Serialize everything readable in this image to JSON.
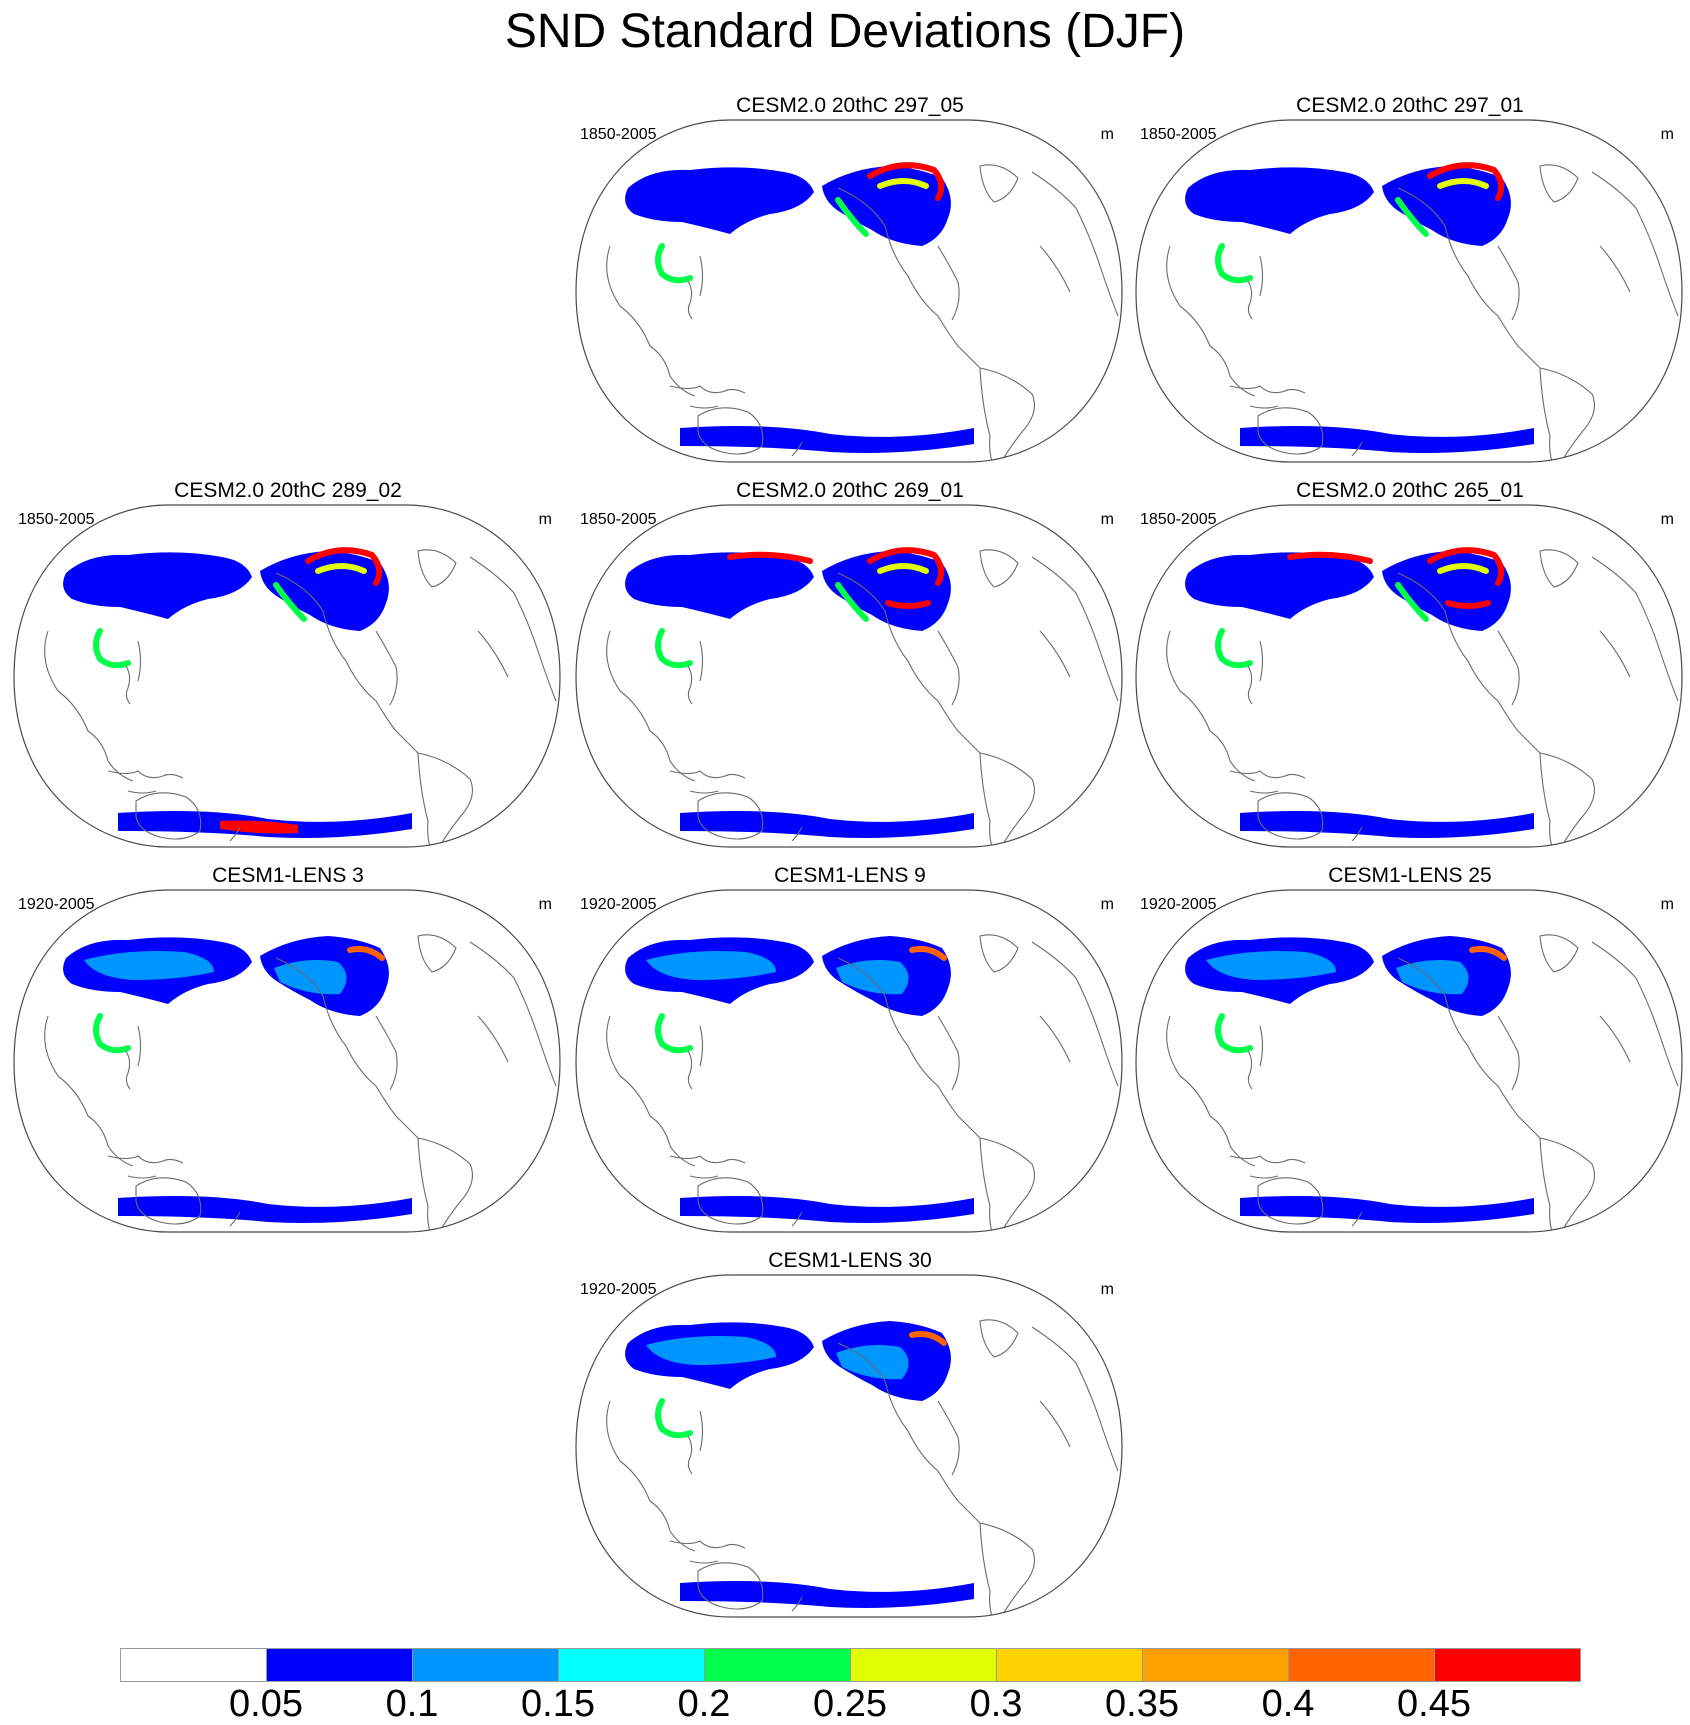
{
  "figure": {
    "title": "SND Standard Deviations (DJF)"
  },
  "panels": [
    {
      "title": "CESM2.0 20thC 297_05",
      "period": "1850-2005",
      "unit": "m",
      "row": 0,
      "col": 1,
      "variant": "cesm2"
    },
    {
      "title": "CESM2.0 20thC 297_01",
      "period": "1850-2005",
      "unit": "m",
      "row": 0,
      "col": 2,
      "variant": "cesm2"
    },
    {
      "title": "CESM2.0 20thC 289_02",
      "period": "1850-2005",
      "unit": "m",
      "row": 1,
      "col": 0,
      "variant": "cesm2-antarctic-red"
    },
    {
      "title": "CESM2.0 20thC 269_01",
      "period": "1850-2005",
      "unit": "m",
      "row": 1,
      "col": 1,
      "variant": "cesm2-red"
    },
    {
      "title": "CESM2.0 20thC 265_01",
      "period": "1850-2005",
      "unit": "m",
      "row": 1,
      "col": 2,
      "variant": "cesm2-red"
    },
    {
      "title": "CESM1-LENS 3",
      "period": "1920-2005",
      "unit": "m",
      "row": 2,
      "col": 0,
      "variant": "lens"
    },
    {
      "title": "CESM1-LENS 9",
      "period": "1920-2005",
      "unit": "m",
      "row": 2,
      "col": 1,
      "variant": "lens"
    },
    {
      "title": "CESM1-LENS 25",
      "period": "1920-2005",
      "unit": "m",
      "row": 2,
      "col": 2,
      "variant": "lens"
    },
    {
      "title": "CESM1-LENS 30",
      "period": "1920-2005",
      "unit": "m",
      "row": 3,
      "col": 1,
      "variant": "lens"
    }
  ],
  "colorbar": {
    "levels": [
      "0.05",
      "0.1",
      "0.15",
      "0.2",
      "0.25",
      "0.3",
      "0.35",
      "0.4",
      "0.45"
    ],
    "colors": [
      "#ffffff",
      "#0000ff",
      "#0096ff",
      "#00ffff",
      "#00ff4b",
      "#e1ff00",
      "#ffd200",
      "#ffa000",
      "#ff6400",
      "#ff0000"
    ]
  }
}
